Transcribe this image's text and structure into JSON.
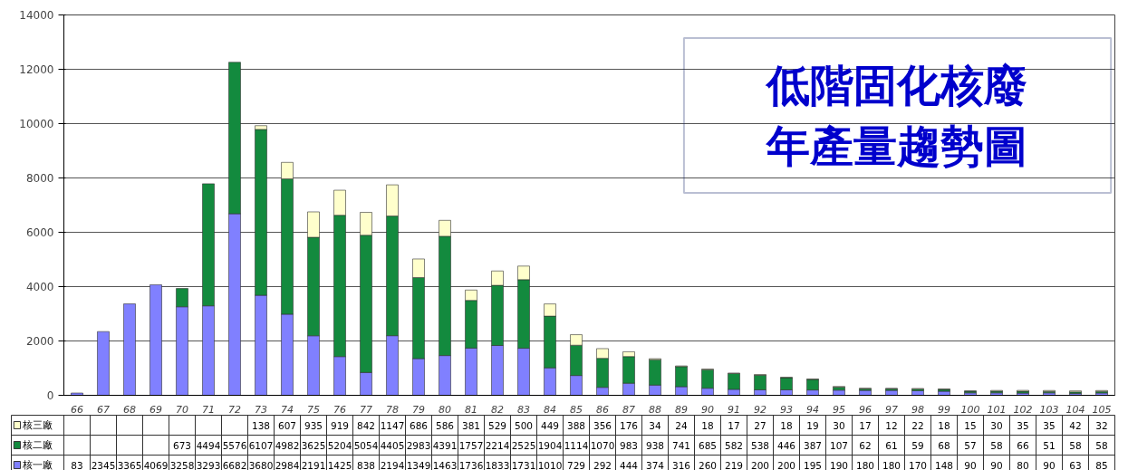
{
  "chart_data": {
    "type": "bar",
    "stacked": true,
    "title": "低階固化核廢年產量趨勢圖",
    "categories": [
      "66",
      "67",
      "68",
      "69",
      "70",
      "71",
      "72",
      "73",
      "74",
      "75",
      "76",
      "77",
      "78",
      "79",
      "80",
      "81",
      "82",
      "83",
      "84",
      "85",
      "86",
      "87",
      "88",
      "89",
      "90",
      "91",
      "92",
      "93",
      "94",
      "95",
      "96",
      "97",
      "98",
      "99",
      "100",
      "101",
      "102",
      "103",
      "104",
      "105"
    ],
    "series": [
      {
        "name": "核一廠",
        "color": "#8080ff",
        "values": [
          83,
          2345,
          3365,
          4069,
          3258,
          3293,
          6682,
          3680,
          2984,
          2191,
          1425,
          838,
          2194,
          1349,
          1463,
          1736,
          1833,
          1731,
          1010,
          729,
          292,
          444,
          374,
          316,
          260,
          219,
          200,
          200,
          195,
          190,
          180,
          180,
          170,
          148,
          90,
          90,
          80,
          90,
          63,
          85
        ]
      },
      {
        "name": "核二廠",
        "color": "#138a3e",
        "values": [
          null,
          null,
          null,
          null,
          673,
          4494,
          5576,
          6107,
          4982,
          3625,
          5204,
          5054,
          4405,
          2983,
          4391,
          1757,
          2214,
          2525,
          1904,
          1114,
          1070,
          983,
          938,
          741,
          685,
          582,
          538,
          446,
          387,
          107,
          62,
          61,
          59,
          68,
          57,
          58,
          66,
          51,
          58,
          58
        ]
      },
      {
        "name": "核三廠",
        "color": "#ffffcc",
        "values": [
          null,
          null,
          null,
          null,
          null,
          null,
          null,
          138,
          607,
          935,
          919,
          842,
          1147,
          686,
          586,
          381,
          529,
          500,
          449,
          388,
          356,
          176,
          34,
          24,
          18,
          17,
          27,
          18,
          19,
          30,
          17,
          12,
          22,
          18,
          15,
          30,
          35,
          35,
          42,
          32
        ]
      }
    ],
    "ylim": [
      0,
      14000
    ],
    "yticks": [
      0,
      2000,
      4000,
      6000,
      8000,
      10000,
      12000,
      14000
    ],
    "grid": "y",
    "legend": "bottom",
    "data_labels": true
  }
}
